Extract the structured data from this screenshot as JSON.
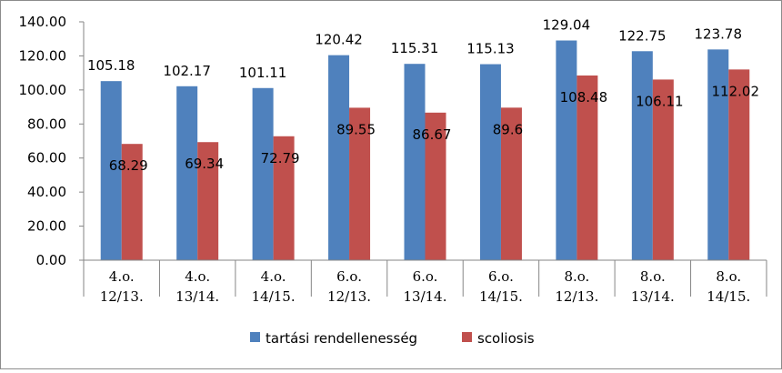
{
  "chart_data": {
    "type": "bar",
    "title": "",
    "xlabel": "",
    "ylabel": "",
    "ylim": [
      0,
      140
    ],
    "yticks": [
      "0.00",
      "20.00",
      "40.00",
      "60.00",
      "80.00",
      "100.00",
      "120.00",
      "140.00"
    ],
    "grid": false,
    "legend_position": "bottom",
    "categories": [
      [
        "4.o.",
        "12/13."
      ],
      [
        "4.o.",
        "13/14."
      ],
      [
        "4.o.",
        "14/15."
      ],
      [
        "6.o.",
        "12/13."
      ],
      [
        "6.o.",
        "13/14."
      ],
      [
        "6.o.",
        "14/15."
      ],
      [
        "8.o.",
        "12/13."
      ],
      [
        "8.o.",
        "13/14."
      ],
      [
        "8.o.",
        "14/15."
      ]
    ],
    "series": [
      {
        "name": "tartási rendellenesség",
        "color": "#4f81bd",
        "values": [
          105.18,
          102.17,
          101.11,
          120.42,
          115.31,
          115.13,
          129.04,
          122.75,
          123.78
        ],
        "labels": [
          "105.18",
          "102.17",
          "101.11",
          "120.42",
          "115.31",
          "115.13",
          "129.04",
          "122.75",
          "123.78"
        ]
      },
      {
        "name": "scoliosis",
        "color": "#c0504d",
        "values": [
          68.29,
          69.34,
          72.79,
          89.55,
          86.67,
          89.6,
          108.48,
          106.11,
          112.02
        ],
        "labels": [
          "68.29",
          "69.34",
          "72.79",
          "89.55",
          "86.67",
          "89.6",
          "108.48",
          "106.11",
          "112.02"
        ]
      }
    ]
  }
}
